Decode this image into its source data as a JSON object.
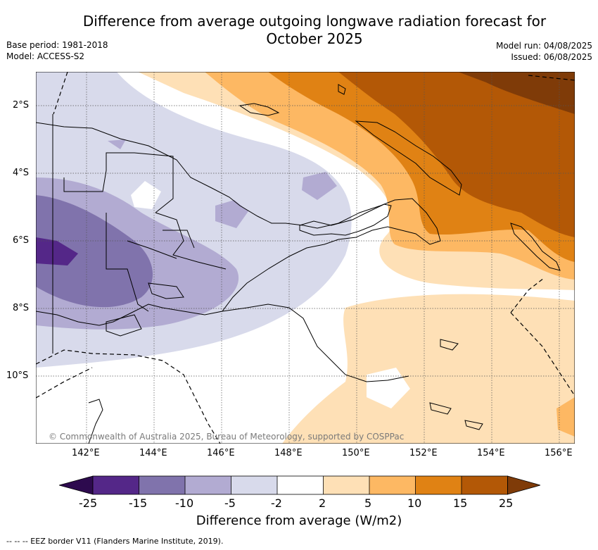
{
  "title_line1": "Difference from average outgoing longwave radiation forecast for",
  "title_line2": "October 2025",
  "meta_left": [
    "Base period: 1981-2018",
    "Model: ACCESS-S2"
  ],
  "meta_right": [
    "Model run: 04/08/2025",
    "Issued: 06/08/2025"
  ],
  "copyright": "© Commonwealth of Australia 2025, Bureau of Meteorology, supported by COSPPac",
  "axes": {
    "lon_ticks": [
      "142°E",
      "144°E",
      "146°E",
      "148°E",
      "150°E",
      "152°E",
      "154°E",
      "156°E"
    ],
    "lat_ticks": [
      "2°S",
      "4°S",
      "6°S",
      "8°S",
      "10°S"
    ]
  },
  "colorbar": {
    "title": "Difference from average (W/m2)",
    "labels": [
      "-25",
      "-15",
      "-10",
      "-5",
      "-2",
      "2",
      "5",
      "10",
      "15",
      "25"
    ],
    "colors": [
      "#2d0a4e",
      "#542788",
      "#8073ac",
      "#b2abd2",
      "#d8daeb",
      "#ffffff",
      "#fee0b6",
      "#fdb863",
      "#e08214",
      "#b35806",
      "#7f3b08"
    ]
  },
  "footer": "--  --  -- EEZ border V11 (Flanders Marine Institute, 2019)."
}
